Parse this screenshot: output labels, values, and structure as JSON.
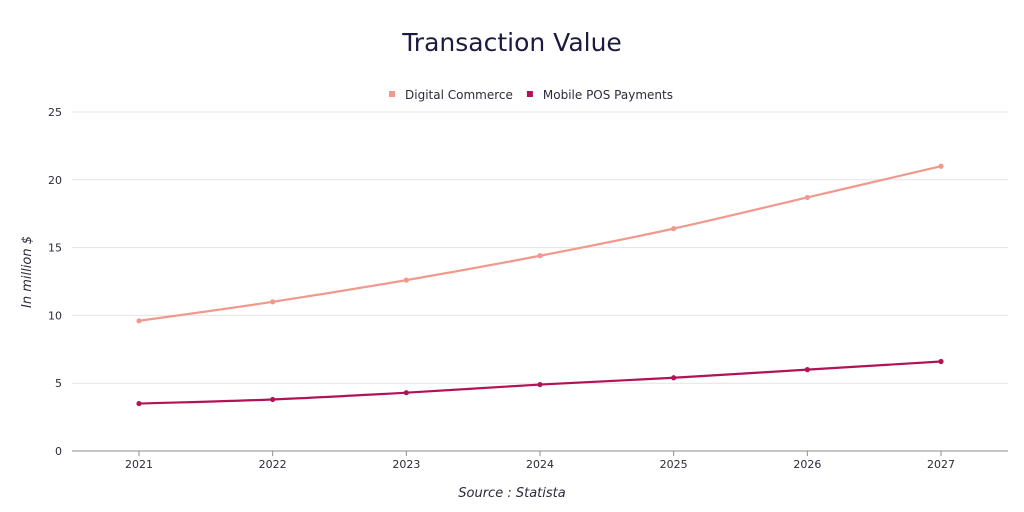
{
  "chart_data": {
    "type": "line",
    "title": "Transaction Value",
    "ylabel": "In million $",
    "xlabel": "",
    "source": "Source : Statista",
    "x": [
      "2021",
      "2022",
      "2023",
      "2024",
      "2025",
      "2026",
      "2027"
    ],
    "ylim": [
      0,
      25
    ],
    "yticks": [
      0,
      5,
      10,
      15,
      20,
      25
    ],
    "grid": true,
    "legend_position": "top-center",
    "series": [
      {
        "name": "Digital Commerce",
        "color": "#f1998c",
        "values": [
          9.6,
          11.0,
          12.6,
          14.4,
          16.4,
          18.7,
          21.0
        ]
      },
      {
        "name": "Mobile POS Payments",
        "color": "#b01356",
        "values": [
          3.5,
          3.8,
          4.3,
          4.9,
          5.4,
          6.0,
          6.6
        ]
      }
    ]
  }
}
